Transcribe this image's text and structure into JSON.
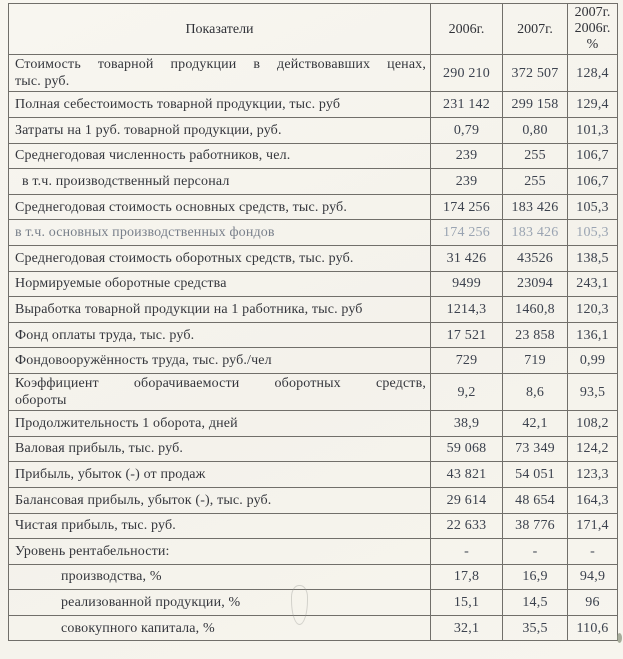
{
  "table": {
    "header": {
      "indicator": "Показатели",
      "y2006": "2006г.",
      "y2007": "2007г.",
      "ratio": [
        "2007г.",
        "2006г.",
        "%"
      ]
    },
    "rows": [
      {
        "label": "Стоимость товарной продукции в действовавших ценах,",
        "label2": "тыс. руб.",
        "v2006": "290 210",
        "v2007": "372 507",
        "ratio": "128,4"
      },
      {
        "label": "Полная себестоимость товарной продукции, тыс. руб",
        "v2006": "231 142",
        "v2007": "299 158",
        "ratio": "129,4"
      },
      {
        "label": "Затраты на 1 руб. товарной продукции, руб.",
        "v2006": "0,79",
        "v2007": "0,80",
        "ratio": "101,3"
      },
      {
        "label": "Среднегодовая численность работников, чел.",
        "v2006": "239",
        "v2007": "255",
        "ratio": "106,7"
      },
      {
        "label": "в т.ч. производственный персонал",
        "indent": "sm",
        "v2006": "239",
        "v2007": "255",
        "ratio": "106,7"
      },
      {
        "label": "Среднегодовая стоимость основных средств, тыс. руб.",
        "v2006": "174 256",
        "v2007": "183 426",
        "ratio": "105,3"
      },
      {
        "label": "в т.ч. основных производственных фондов",
        "faded": true,
        "v2006": "174 256",
        "v2007": "183 426",
        "ratio": "105,3"
      },
      {
        "label": "Среднегодовая стоимость оборотных средств, тыс. руб.",
        "v2006": "31 426",
        "v2007": "43526",
        "ratio": "138,5"
      },
      {
        "label": "Нормируемые оборотные средства",
        "v2006": "9499",
        "v2007": "23094",
        "ratio": "243,1"
      },
      {
        "label": "Выработка товарной продукции на 1 работника, тыс. руб",
        "v2006": "1214,3",
        "v2007": "1460,8",
        "ratio": "120,3"
      },
      {
        "label": "Фонд оплаты труда, тыс. руб.",
        "v2006": "17 521",
        "v2007": "23 858",
        "ratio": "136,1"
      },
      {
        "label": "Фондовооружённость труда, тыс. руб./чел",
        "v2006": "729",
        "v2007": "719",
        "ratio": "0,99"
      },
      {
        "label": "Коэффициент оборачиваемости оборотных средств,",
        "label2": "обороты",
        "v2006": "9,2",
        "v2007": "8,6",
        "ratio": "93,5"
      },
      {
        "label": "Продолжительность 1 оборота, дней",
        "v2006": "38,9",
        "v2007": "42,1",
        "ratio": "108,2"
      },
      {
        "label": "Валовая прибыль, тыс. руб.",
        "v2006": "59 068",
        "v2007": "73 349",
        "ratio": "124,2"
      },
      {
        "label": "Прибыль, убыток (-) от продаж",
        "v2006": "43 821",
        "v2007": "54 051",
        "ratio": "123,3"
      },
      {
        "label": "Балансовая прибыль, убыток (-), тыс. руб.",
        "v2006": "29 614",
        "v2007": "48 654",
        "ratio": "164,3"
      },
      {
        "label": "Чистая прибыль, тыс. руб.",
        "v2006": "22 633",
        "v2007": "38 776",
        "ratio": "171,4"
      },
      {
        "label": "Уровень рентабельности:",
        "v2006": "-",
        "v2007": "-",
        "ratio": "-"
      },
      {
        "label": "производства, %",
        "indent": "lg",
        "v2006": "17,8",
        "v2007": "16,9",
        "ratio": "94,9"
      },
      {
        "label": "реализованной продукции, %",
        "indent": "lg",
        "v2006": "15,1",
        "v2007": "14,5",
        "ratio": "96"
      },
      {
        "label": "совокупного капитала, %",
        "indent": "lg",
        "v2006": "32,1",
        "v2007": "35,5",
        "ratio": "110,6"
      }
    ]
  }
}
